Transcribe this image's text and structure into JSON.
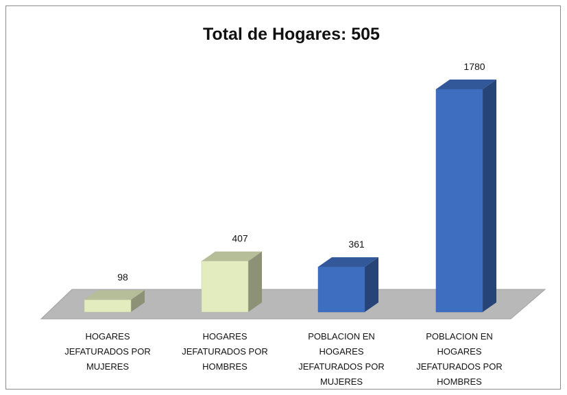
{
  "chart_data": {
    "type": "bar3d",
    "title": "Total de Hogares: 505",
    "categories": [
      "HOGARES JEFATURADOS POR MUJERES",
      "HOGARES JEFATURADOS POR HOMBRES",
      "POBLACION EN HOGARES JEFATURADOS POR MUJERES",
      "POBLACION EN HOGARES JEFATURADOS POR HOMBRES"
    ],
    "values": [
      98,
      407,
      361,
      1780
    ],
    "colors": [
      "#e3ecbf",
      "#e3ecbf",
      "#3e6ec0",
      "#3e6ec0"
    ]
  }
}
